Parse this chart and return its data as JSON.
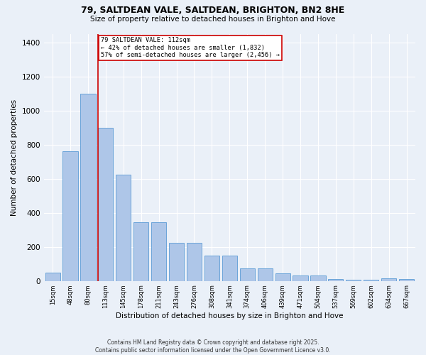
{
  "title": "79, SALTDEAN VALE, SALTDEAN, BRIGHTON, BN2 8HE",
  "subtitle": "Size of property relative to detached houses in Brighton and Hove",
  "xlabel": "Distribution of detached houses by size in Brighton and Hove",
  "ylabel": "Number of detached properties",
  "categories": [
    "15sqm",
    "48sqm",
    "80sqm",
    "113sqm",
    "145sqm",
    "178sqm",
    "211sqm",
    "243sqm",
    "276sqm",
    "308sqm",
    "341sqm",
    "374sqm",
    "406sqm",
    "439sqm",
    "471sqm",
    "504sqm",
    "537sqm",
    "569sqm",
    "602sqm",
    "634sqm",
    "667sqm"
  ],
  "values": [
    50,
    760,
    1100,
    900,
    625,
    345,
    345,
    225,
    225,
    150,
    150,
    75,
    75,
    45,
    30,
    30,
    10,
    8,
    5,
    15,
    10
  ],
  "bar_color": "#aec6e8",
  "bar_edge_color": "#5b9bd5",
  "background_color": "#eaf0f8",
  "grid_color": "#ffffff",
  "annotation_text": "79 SALTDEAN VALE: 112sqm\n← 42% of detached houses are smaller (1,832)\n57% of semi-detached houses are larger (2,456) →",
  "annotation_box_color": "#ffffff",
  "annotation_box_edge": "#cc0000",
  "footer": "Contains HM Land Registry data © Crown copyright and database right 2025.\nContains public sector information licensed under the Open Government Licence v3.0.",
  "ylim": [
    0,
    1450
  ],
  "yticks": [
    0,
    200,
    400,
    600,
    800,
    1000,
    1200,
    1400
  ]
}
